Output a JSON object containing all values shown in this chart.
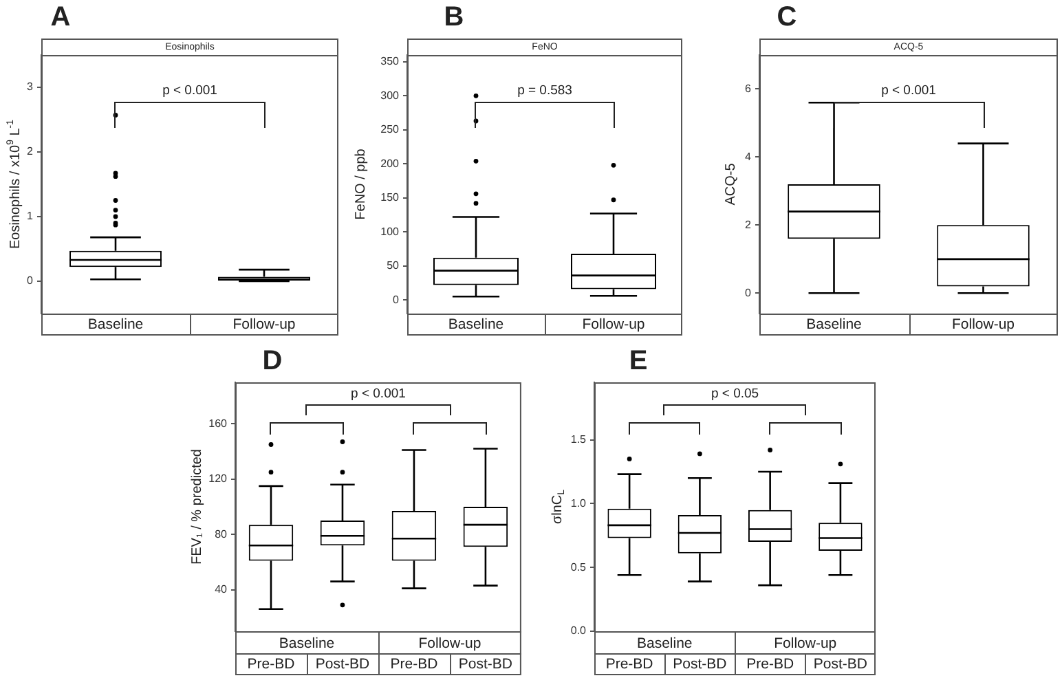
{
  "chart_data": [
    {
      "type": "box",
      "title": "Eosinophils",
      "ylabel": "Eosinophils / x10$^{9}$ L$^{-1}$",
      "annotations": [
        "A",
        "p < 0.001"
      ],
      "categories": [
        "Baseline",
        "Follow-up"
      ],
      "color": "#000000",
      "marker": "circle",
      "ylim": [
        -0.5,
        3.5
      ],
      "yticks": [
        0,
        1,
        2,
        3
      ],
      "boxes": [
        {
          "low": 0.03,
          "q1": 0.22,
          "median": 0.33,
          "q3": 0.47,
          "high": 0.68,
          "outliers": [
            0.87,
            0.9,
            1.0,
            1.1,
            1.25,
            1.62,
            1.67,
            2.57
          ]
        },
        {
          "low": 0,
          "q1": 0.01,
          "median": 0.03,
          "q3": 0.07,
          "high": 0.18
        }
      ]
    },
    {
      "type": "box",
      "title": "FeNO",
      "ylabel": "FeNO / ppb",
      "annotations": [
        "B",
        "p = 0.583"
      ],
      "categories": [
        "Baseline",
        "Follow-up"
      ],
      "color": "#000000",
      "marker": "circle",
      "ylim": [
        -20,
        360
      ],
      "yticks": [
        0,
        50,
        100,
        150,
        200,
        250,
        300,
        350
      ],
      "boxes": [
        {
          "low": 5,
          "q1": 22,
          "median": 43,
          "q3": 62,
          "high": 122,
          "outliers": [
            142,
            156,
            204,
            263,
            300
          ]
        },
        {
          "low": 6,
          "q1": 16,
          "median": 36,
          "q3": 68,
          "high": 127,
          "outliers": [
            147,
            198
          ]
        }
      ]
    },
    {
      "type": "box",
      "title": "ACQ-5",
      "ylabel": "ACQ-5",
      "annotations": [
        "C",
        "p < 0.001"
      ],
      "categories": [
        "Baseline",
        "Follow-up"
      ],
      "color": "#000000",
      "ylim": [
        -0.6,
        7
      ],
      "yticks": [
        0,
        2,
        4,
        6
      ],
      "boxes": [
        {
          "low": 0,
          "q1": 1.6,
          "median": 2.4,
          "q3": 3.2,
          "high": 5.6
        },
        {
          "low": 0,
          "q1": 0.2,
          "median": 1.0,
          "q3": 2.0,
          "high": 4.4
        }
      ]
    },
    {
      "type": "box",
      "ylabel": "FEV₁ / % predicted",
      "annotations": [
        "D",
        "p < 0.001",
        "Baseline",
        "Follow-up"
      ],
      "categories": [
        "Pre-BD",
        "Post-BD",
        "Pre-BD",
        "Post-BD"
      ],
      "color": "#000000",
      "marker": "circle",
      "ylim": [
        10,
        190
      ],
      "yticks": [
        40,
        80,
        120,
        160
      ],
      "boxes": [
        {
          "low": 26,
          "q1": 61,
          "median": 72,
          "q3": 87,
          "high": 115,
          "outliers": [
            125,
            145
          ]
        },
        {
          "low": 46,
          "q1": 72,
          "median": 79,
          "q3": 90,
          "high": 116,
          "outliers": [
            29,
            125,
            147
          ]
        },
        {
          "low": 41,
          "q1": 61,
          "median": 77,
          "q3": 97,
          "high": 141
        },
        {
          "low": 43,
          "q1": 71,
          "median": 87,
          "q3": 100,
          "high": 142
        }
      ]
    },
    {
      "type": "box",
      "ylabel": "σlnC$_{L}$",
      "annotations": [
        "E",
        "p < 0.05",
        "Baseline",
        "Follow-up"
      ],
      "categories": [
        "Pre-BD",
        "Post-BD",
        "Pre-BD",
        "Post-BD"
      ],
      "color": "#000000",
      "marker": "circle",
      "ylim": [
        0,
        1.95
      ],
      "yticks": [
        {
          "value": 0,
          "label": "0.0"
        },
        {
          "value": 0.5,
          "label": "0.5"
        },
        {
          "value": 1,
          "label": "1.0"
        },
        {
          "value": 1.5,
          "label": "1.5"
        }
      ],
      "boxes": [
        {
          "low": 0.44,
          "q1": 0.73,
          "median": 0.83,
          "q3": 0.96,
          "high": 1.23,
          "outliers": [
            1.35
          ]
        },
        {
          "low": 0.39,
          "q1": 0.61,
          "median": 0.77,
          "q3": 0.91,
          "high": 1.2,
          "outliers": [
            1.39
          ]
        },
        {
          "low": 0.36,
          "q1": 0.7,
          "median": 0.8,
          "q3": 0.95,
          "high": 1.25,
          "outliers": [
            1.42
          ]
        },
        {
          "low": 0.44,
          "q1": 0.63,
          "median": 0.73,
          "q3": 0.85,
          "high": 1.16,
          "outliers": [
            1.31
          ]
        }
      ]
    }
  ]
}
